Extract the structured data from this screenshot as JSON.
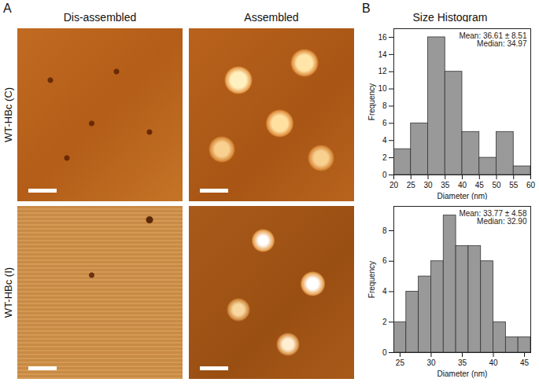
{
  "figure": {
    "panel_labels": [
      "A",
      "B"
    ],
    "column_titles": [
      "Dis-assembled",
      "Assembled",
      "Size Histogram"
    ],
    "row_labels": [
      "WT-HBc (C)",
      "WT-HBc (I)"
    ]
  },
  "chart_data": [
    {
      "type": "histogram",
      "bins": [
        20,
        25,
        30,
        35,
        40,
        45,
        50,
        55,
        60
      ],
      "values": [
        3,
        6,
        16,
        12,
        5,
        2,
        5,
        1
      ],
      "color": "#999999",
      "xlabel": "Diameter (nm)",
      "ylabel": "Frequency",
      "xlim": [
        20,
        60
      ],
      "xticks": [
        20,
        25,
        30,
        35,
        40,
        45,
        50,
        55,
        60
      ],
      "ylim": [
        0,
        17
      ],
      "yticks": [
        0,
        2,
        4,
        6,
        8,
        10,
        12,
        14,
        16
      ],
      "annotations": [
        "Mean: 36.61 ± 8.51",
        "Median: 34.97"
      ],
      "grid": false
    },
    {
      "type": "histogram",
      "bins": [
        24,
        26,
        28,
        30,
        32,
        34,
        36,
        38,
        40,
        42,
        44,
        46
      ],
      "values": [
        2,
        4,
        5,
        6,
        9,
        7,
        7,
        6,
        2,
        1,
        1
      ],
      "color": "#999999",
      "xlabel": "Diameter (nm)",
      "ylabel": "Frequency",
      "xlim": [
        24,
        46
      ],
      "xticks": [
        25,
        30,
        35,
        40,
        45
      ],
      "ylim": [
        0,
        9.6
      ],
      "yticks": [
        0,
        2,
        4,
        6,
        8
      ],
      "annotations": [
        "Mean: 33.77 ± 4.58",
        "Median: 32.90"
      ],
      "grid": false
    }
  ]
}
